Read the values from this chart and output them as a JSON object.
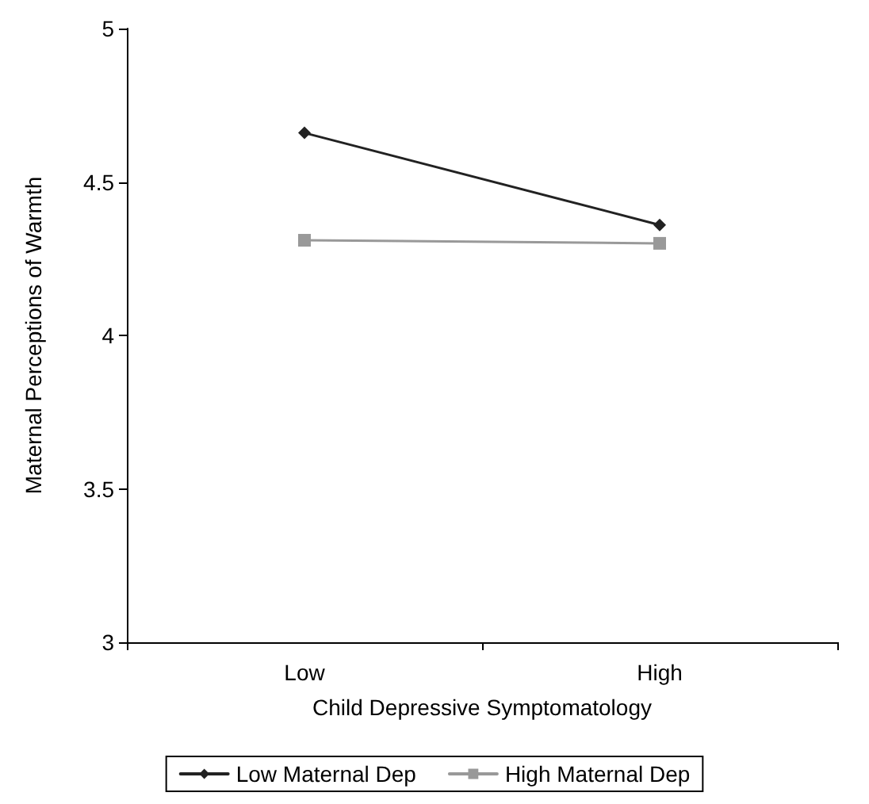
{
  "chart_data": {
    "type": "line",
    "xlabel": "Child Depressive Symptomatology",
    "ylabel": "Maternal Perceptions of Warmth",
    "categories": [
      "Low",
      "High"
    ],
    "series": [
      {
        "name": "Low Maternal Dep",
        "color": "#222222",
        "marker": "diamond",
        "values": [
          4.66,
          4.36
        ]
      },
      {
        "name": "High Maternal Dep",
        "color": "#999999",
        "marker": "square",
        "values": [
          4.31,
          4.3
        ]
      }
    ],
    "ylim": [
      3,
      5
    ],
    "yticks": [
      3,
      3.5,
      4,
      4.5,
      5
    ],
    "grid": false,
    "legend": "bottom",
    "line_style": "solid"
  }
}
